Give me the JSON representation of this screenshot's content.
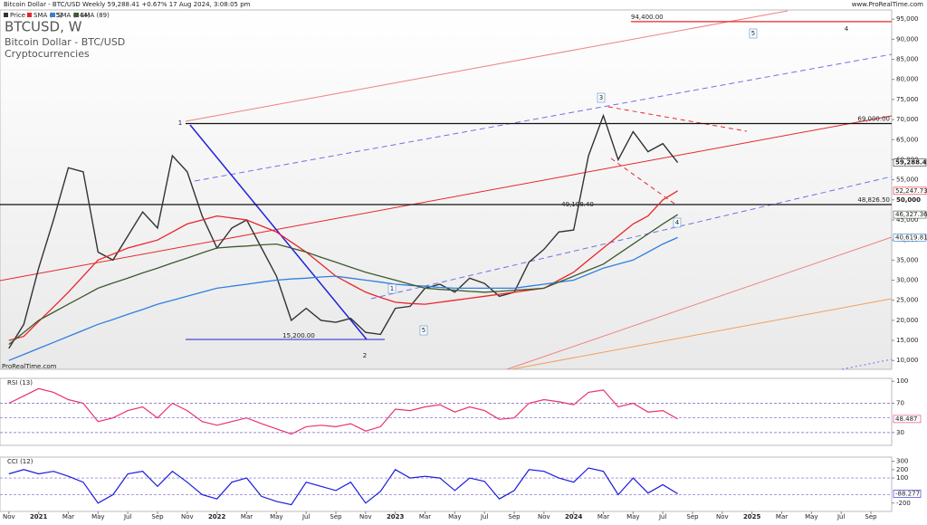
{
  "header": {
    "title": "Bitcoin Dollar - BTC/USD Weekly 59,288.41 +0.67% 17 Aug 2024, 3:08:05 pm",
    "site": "www.ProRealTime.com"
  },
  "chart_data": [
    {
      "type": "line",
      "title": "BTCUSD, W",
      "subtitle": "Bitcoin Dollar - BTC/USD",
      "category_label": "Cryptocurrencies",
      "watermark": "ProRealTime.com",
      "x": [
        0,
        1,
        2,
        3,
        4,
        5,
        6,
        7,
        8,
        9,
        10,
        11,
        12,
        13,
        14,
        15,
        16,
        17,
        18,
        19,
        20,
        21,
        22,
        23,
        24,
        25,
        26,
        27,
        28,
        29,
        30,
        31,
        32,
        33,
        34,
        35,
        36,
        37,
        38,
        39,
        40,
        41,
        42,
        43,
        44,
        45
      ],
      "xlim": [
        -0.6,
        59.4
      ],
      "ylim": [
        7800,
        97300
      ],
      "grid": false,
      "yticks": [
        {
          "value": 10000,
          "label": "10,000"
        },
        {
          "value": 15000,
          "label": "15,000"
        },
        {
          "value": 20000,
          "label": "20,000"
        },
        {
          "value": 25000,
          "label": "25,000"
        },
        {
          "value": 30000,
          "label": "30,000"
        },
        {
          "value": 35000,
          "label": "35,000"
        },
        {
          "value": 40000,
          "label": "40,000"
        },
        {
          "value": 45000,
          "label": "45,000"
        },
        {
          "value": 50000,
          "label": "50,000"
        },
        {
          "value": 55000,
          "label": "55,000"
        },
        {
          "value": 60000,
          "label": "60,000"
        },
        {
          "value": 65000,
          "label": "65,000"
        },
        {
          "value": 70000,
          "label": "70,000"
        },
        {
          "value": 75000,
          "label": "75,000"
        },
        {
          "value": 80000,
          "label": "80,000"
        },
        {
          "value": 85000,
          "label": "85,000"
        },
        {
          "value": 90000,
          "label": "90,000"
        },
        {
          "value": 95000,
          "label": "95,000"
        }
      ],
      "series": [
        {
          "name": "Price",
          "color": "#333333",
          "last_label": "59,288.41",
          "values": [
            13000,
            19000,
            33000,
            45000,
            58000,
            57000,
            37000,
            35000,
            41000,
            47000,
            43000,
            61000,
            57000,
            46000,
            38000,
            43000,
            45000,
            38000,
            31000,
            20000,
            23000,
            20000,
            19500,
            20500,
            17000,
            16500,
            23000,
            23500,
            28000,
            29000,
            27000,
            30500,
            29200,
            26000,
            27000,
            34500,
            37700,
            42000,
            42500,
            61000,
            71000,
            60000,
            67000,
            62000,
            64000,
            59288.41
          ]
        },
        {
          "name": "SMA (55)",
          "color": "#e8262b",
          "last_label": "52,247.73",
          "values": [
            15000,
            16000,
            19700,
            23300,
            27000,
            31000,
            35000,
            36500,
            38000,
            39000,
            40000,
            42000,
            44000,
            45000,
            46000,
            45500,
            45000,
            43500,
            42000,
            39500,
            37000,
            34000,
            31000,
            29000,
            27000,
            25700,
            24500,
            24200,
            24000,
            24500,
            25000,
            25500,
            26000,
            26500,
            27000,
            27500,
            28000,
            30000,
            32000,
            35000,
            38000,
            41000,
            44000,
            46000,
            50000,
            52247.73
          ]
        },
        {
          "name": "SMA (144)",
          "color": "#2f7fe0",
          "last_label": "40,619.81",
          "values": [
            10000,
            11500,
            13000,
            14500,
            16000,
            17500,
            19000,
            20200,
            21500,
            22700,
            24000,
            25000,
            26000,
            27000,
            28000,
            28500,
            29000,
            29500,
            30000,
            30300,
            30500,
            30800,
            31000,
            30500,
            30000,
            29500,
            29000,
            28700,
            28500,
            28200,
            28000,
            28000,
            28000,
            28000,
            28000,
            28500,
            29000,
            29500,
            30000,
            31500,
            33000,
            34000,
            35000,
            37000,
            39000,
            40619.81
          ]
        },
        {
          "name": "SMA (89)",
          "color": "#3d5a2e",
          "last_label": "46,327.36",
          "values": [
            14000,
            17000,
            20000,
            22000,
            24000,
            26000,
            28000,
            29300,
            30500,
            31800,
            33000,
            34300,
            35500,
            36800,
            38000,
            38300,
            38500,
            38800,
            39000,
            38000,
            37000,
            35700,
            34500,
            33200,
            32000,
            31000,
            30000,
            29000,
            28000,
            27700,
            27500,
            27200,
            27000,
            27200,
            27500,
            27700,
            28000,
            29500,
            31000,
            32500,
            34000,
            36500,
            39000,
            41500,
            44000,
            46327.36
          ]
        }
      ],
      "levels": [
        {
          "value": 69000,
          "label": "69,000.00",
          "color": "#111111"
        },
        {
          "value": 48826.5,
          "label": "48,826.50",
          "color": "#111111"
        },
        {
          "value": 94400,
          "label": "94,400.00",
          "color": "#e8262b"
        }
      ],
      "annotations": [
        {
          "text": "1",
          "style": "wave"
        },
        {
          "text": "2",
          "style": "wave"
        },
        {
          "text": "4",
          "style": "wave"
        },
        {
          "text": "5",
          "style": "box"
        },
        {
          "text": "3",
          "style": "box"
        },
        {
          "text": "1",
          "style": "box"
        },
        {
          "text": "5",
          "style": "box"
        },
        {
          "text": "4",
          "style": "box"
        },
        {
          "text": "15,200.00",
          "style": "note"
        },
        {
          "text": "49,198.40",
          "style": "note"
        }
      ]
    },
    {
      "type": "line",
      "name": "RSI (13)",
      "color": "#e8326e",
      "x": [
        0,
        1,
        2,
        3,
        4,
        5,
        6,
        7,
        8,
        9,
        10,
        11,
        12,
        13,
        14,
        15,
        16,
        17,
        18,
        19,
        20,
        21,
        22,
        23,
        24,
        25,
        26,
        27,
        28,
        29,
        30,
        31,
        32,
        33,
        34,
        35,
        36,
        37,
        38,
        39,
        40,
        41,
        42,
        43,
        44,
        45
      ],
      "xlim": [
        -0.6,
        59.4
      ],
      "ylim": [
        12.5,
        104
      ],
      "yticks": [
        30,
        70,
        100
      ],
      "guides": [
        30,
        50,
        70
      ],
      "values": [
        70,
        80,
        90,
        85,
        75,
        70,
        45,
        50,
        60,
        65,
        50,
        70,
        60,
        45,
        40,
        45,
        50,
        42,
        35,
        28,
        38,
        40,
        38,
        42,
        32,
        38,
        62,
        60,
        65,
        68,
        58,
        65,
        60,
        48,
        50,
        70,
        75,
        72,
        68,
        85,
        88,
        65,
        70,
        58,
        60,
        48.487
      ]
    },
    {
      "type": "line",
      "name": "CCI (12)",
      "color": "#1a1ae0",
      "x": [
        0,
        1,
        2,
        3,
        4,
        5,
        6,
        7,
        8,
        9,
        10,
        11,
        12,
        13,
        14,
        15,
        16,
        17,
        18,
        19,
        20,
        21,
        22,
        23,
        24,
        25,
        26,
        27,
        28,
        29,
        30,
        31,
        32,
        33,
        34,
        35,
        36,
        37,
        38,
        39,
        40,
        41,
        42,
        43,
        44,
        45
      ],
      "xlim": [
        -0.6,
        59.4
      ],
      "ylim": [
        -300,
        350
      ],
      "yticks": [
        -200,
        100,
        200,
        300
      ],
      "guides": [
        -100,
        100
      ],
      "xticks": [
        {
          "value": 0,
          "label": "Nov"
        },
        {
          "value": 2,
          "label": "2021"
        },
        {
          "value": 4,
          "label": "Mar"
        },
        {
          "value": 6,
          "label": "May"
        },
        {
          "value": 8,
          "label": "Jul"
        },
        {
          "value": 10,
          "label": "Sep"
        },
        {
          "value": 12,
          "label": "Nov"
        },
        {
          "value": 14,
          "label": "2022"
        },
        {
          "value": 16,
          "label": "Mar"
        },
        {
          "value": 18,
          "label": "May"
        },
        {
          "value": 20,
          "label": "Jul"
        },
        {
          "value": 22,
          "label": "Sep"
        },
        {
          "value": 24,
          "label": "Nov"
        },
        {
          "value": 26,
          "label": "2023"
        },
        {
          "value": 28,
          "label": "Mar"
        },
        {
          "value": 30,
          "label": "May"
        },
        {
          "value": 32,
          "label": "Jul"
        },
        {
          "value": 34,
          "label": "Sep"
        },
        {
          "value": 36,
          "label": "Nov"
        },
        {
          "value": 38,
          "label": "2024"
        },
        {
          "value": 40,
          "label": "Mar"
        },
        {
          "value": 42,
          "label": "May"
        },
        {
          "value": 44,
          "label": "Jul"
        },
        {
          "value": 46,
          "label": "Sep"
        },
        {
          "value": 48,
          "label": "Nov"
        },
        {
          "value": 50,
          "label": "2025"
        },
        {
          "value": 52,
          "label": "Mar"
        },
        {
          "value": 54,
          "label": "May"
        },
        {
          "value": 56,
          "label": "Jul"
        },
        {
          "value": 58,
          "label": "Sep"
        }
      ],
      "values": [
        150,
        200,
        150,
        180,
        120,
        50,
        -200,
        -100,
        150,
        180,
        0,
        180,
        50,
        -100,
        -150,
        50,
        100,
        -120,
        -180,
        -220,
        50,
        0,
        -50,
        50,
        -200,
        -60,
        200,
        100,
        120,
        100,
        -50,
        100,
        60,
        -150,
        -50,
        200,
        180,
        100,
        50,
        220,
        180,
        -100,
        100,
        -80,
        20,
        -88.277
      ]
    }
  ]
}
